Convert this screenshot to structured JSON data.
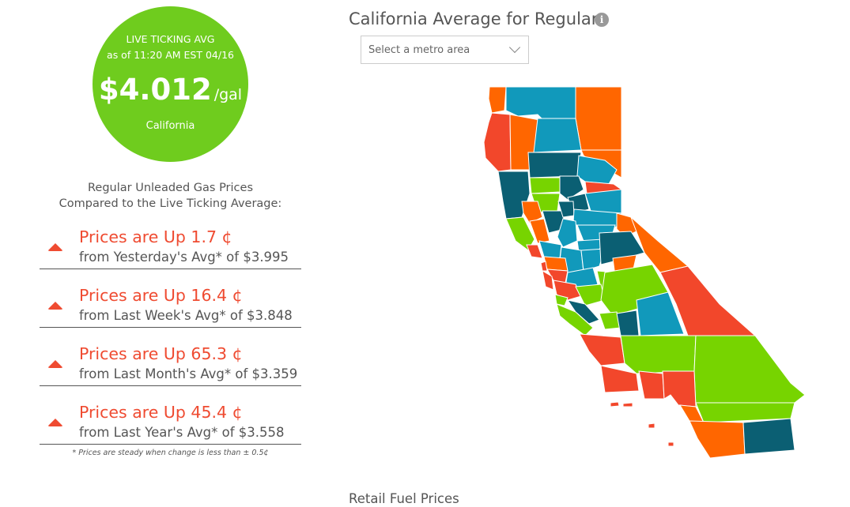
{
  "live_avg": {
    "line1": "LIVE TICKING AVG",
    "line2": "as of 11:20 AM EST 04/16",
    "price": "$4.012",
    "unit": "/gal",
    "state": "California",
    "circle_color": "#6fcc1e"
  },
  "compare": {
    "heading_line1": "Regular Unleaded Gas Prices",
    "heading_line2": "Compared to the Live Ticking Average:",
    "items": [
      {
        "icon": "up-arrow-icon",
        "main": "Prices are Up 1.7 ¢",
        "sub": "from Yesterday's Avg* of $3.995"
      },
      {
        "icon": "up-arrow-icon",
        "main": "Prices are Up 16.4 ¢",
        "sub": "from Last Week's Avg* of $3.848"
      },
      {
        "icon": "up-arrow-icon",
        "main": "Prices are Up 65.3 ¢",
        "sub": "from Last Month's Avg* of $3.359"
      },
      {
        "icon": "up-arrow-icon",
        "main": "Prices are Up 45.4 ¢",
        "sub": "from Last Year's Avg* of $3.558"
      }
    ],
    "footnote": "* Prices are steady when change is less than ± 0.5¢",
    "up_color": "#ef4b31"
  },
  "map": {
    "title": "California Average for Regular",
    "info_icon": "info-icon",
    "select_placeholder": "Select a metro area",
    "colors": {
      "green": "#77d400",
      "orange": "#ff6600",
      "red": "#f2472b",
      "teal": "#1199bb",
      "dark_teal": "#0b5f73"
    }
  },
  "retail": {
    "title": "Retail Fuel Prices"
  }
}
